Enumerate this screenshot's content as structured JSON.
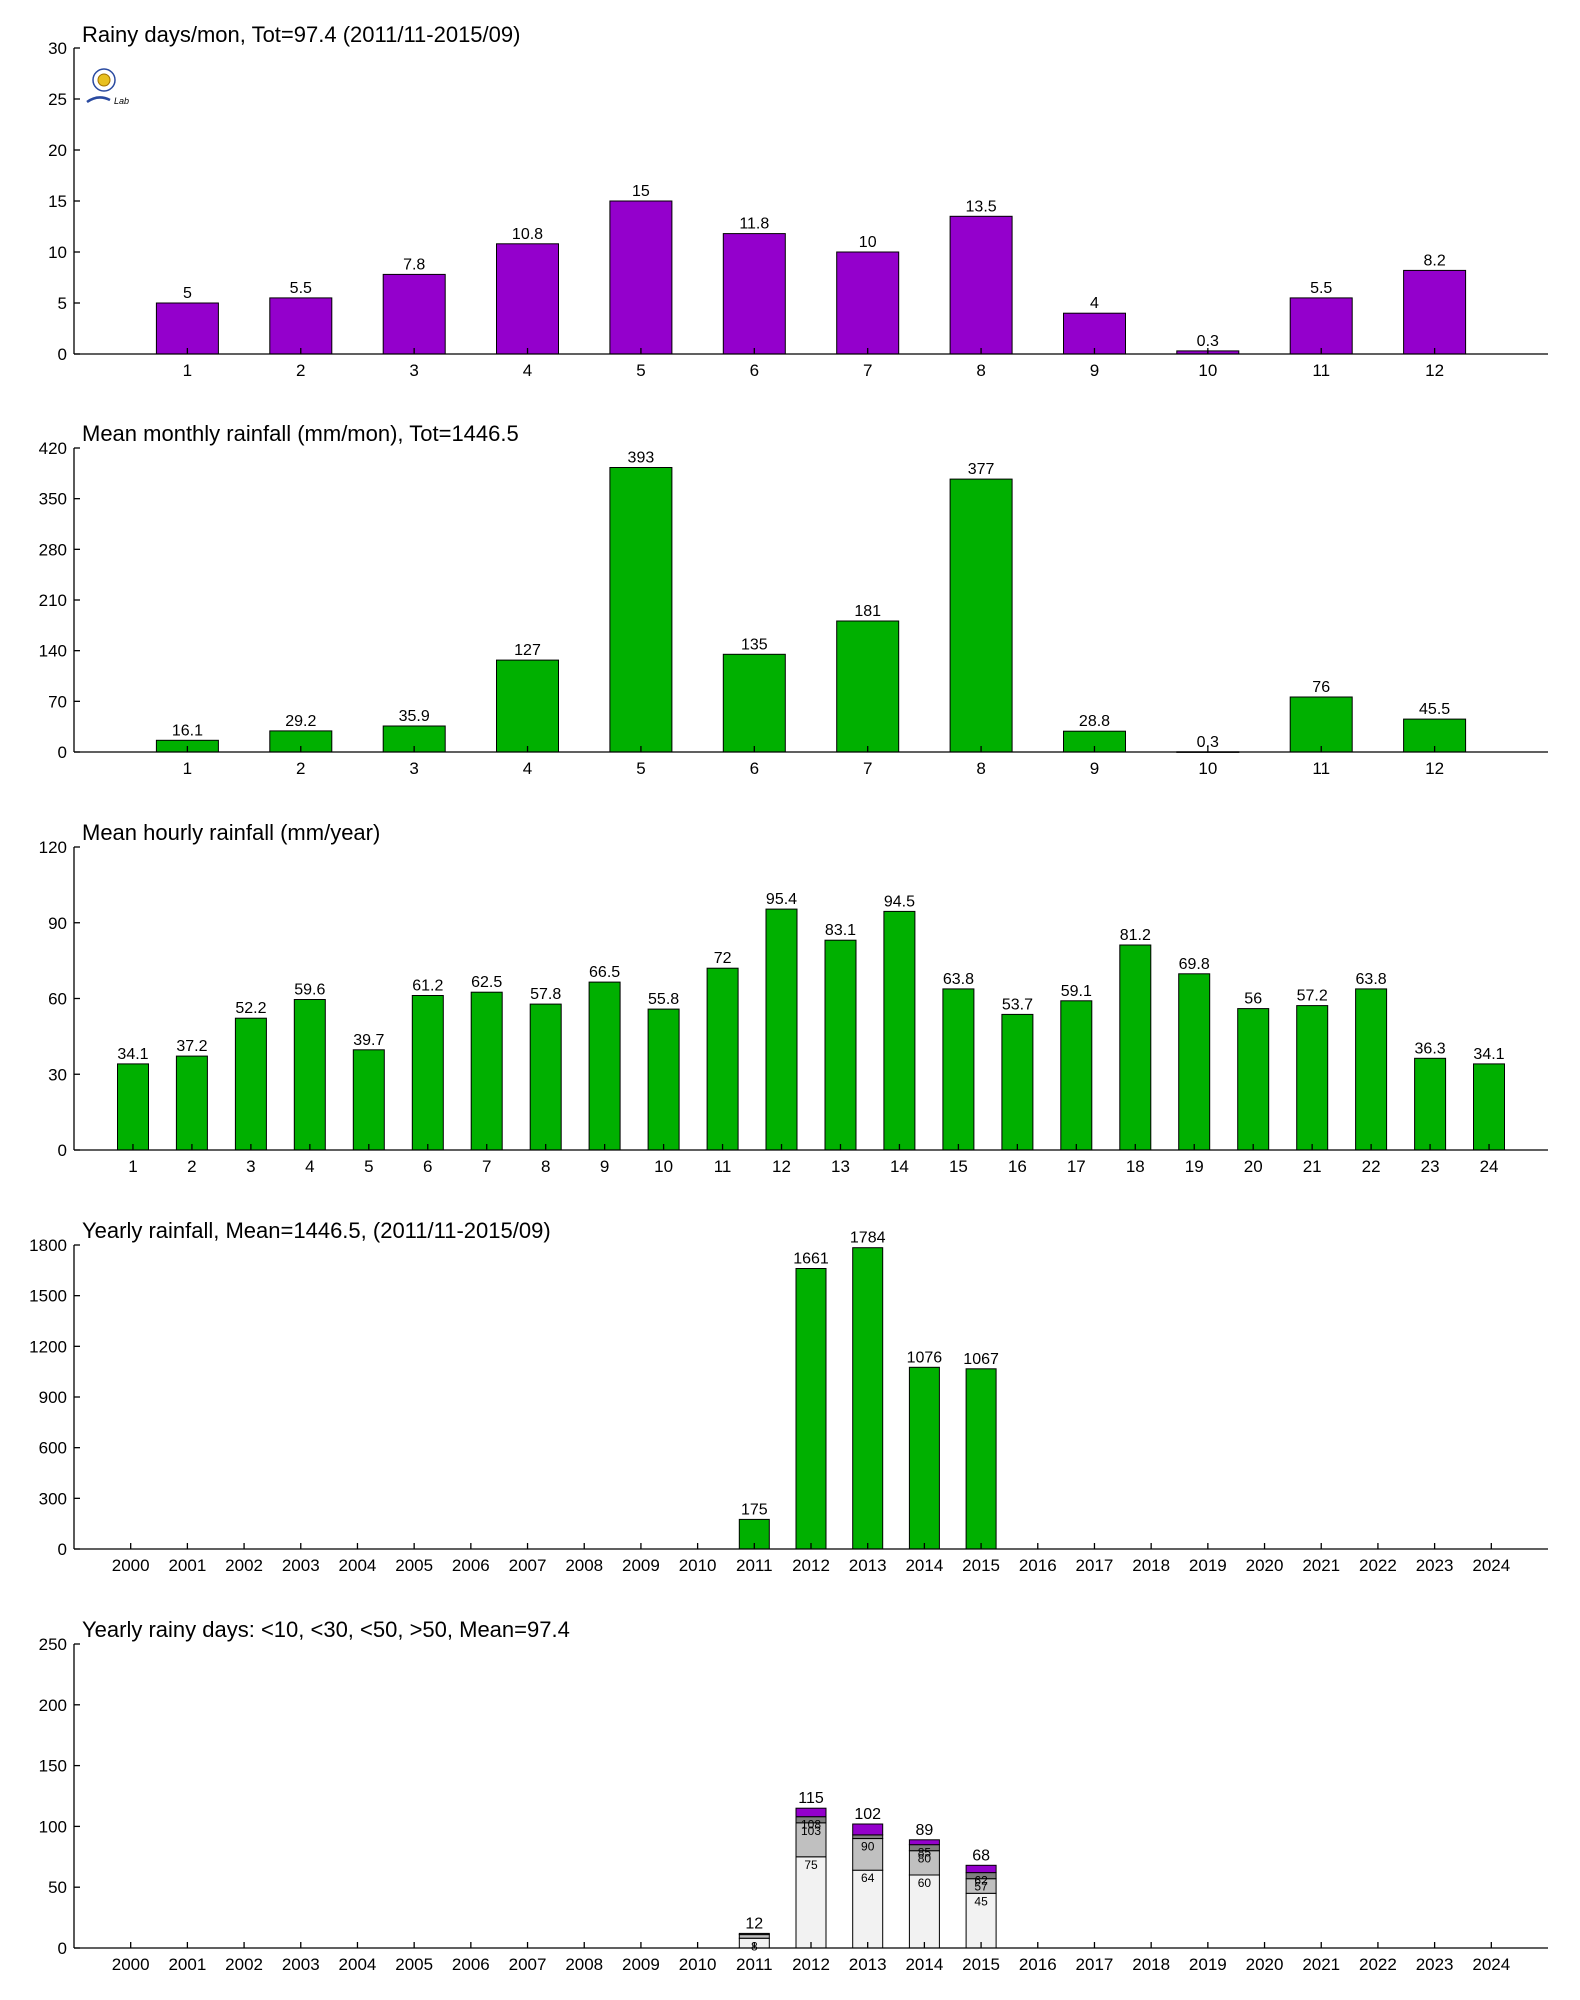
{
  "logo": {
    "label": "Lab"
  },
  "colors": {
    "purple": "#9400cc",
    "green": "#00b000",
    "seg_lt10": "#f2f2f2",
    "seg_lt30": "#c0c0c0",
    "seg_lt50": "#7f7f7f",
    "seg_gt50": "#9400cc"
  },
  "chart_data": [
    {
      "type": "bar",
      "title": "Rainy days/mon, Tot=97.4 (2011/11-2015/09)",
      "color": "purple",
      "categories": [
        "1",
        "2",
        "3",
        "4",
        "5",
        "6",
        "7",
        "8",
        "9",
        "10",
        "11",
        "12"
      ],
      "values": [
        5,
        5.5,
        7.8,
        10.8,
        15,
        11.8,
        10,
        13.5,
        4,
        0.3,
        5.5,
        8.2
      ],
      "value_labels": [
        "5",
        "5.5",
        "7.8",
        "10.8",
        "15",
        "11.8",
        "10",
        "13.5",
        "4",
        "0.3",
        "5.5",
        "8.2"
      ],
      "ylim": [
        0,
        30
      ],
      "yticks": [
        0,
        5,
        10,
        15,
        20,
        25,
        30
      ]
    },
    {
      "type": "bar",
      "title": "Mean monthly rainfall (mm/mon), Tot=1446.5",
      "color": "green",
      "categories": [
        "1",
        "2",
        "3",
        "4",
        "5",
        "6",
        "7",
        "8",
        "9",
        "10",
        "11",
        "12"
      ],
      "values": [
        16.1,
        29.2,
        35.9,
        127,
        393,
        135,
        181,
        377,
        28.8,
        0.3,
        76,
        45.5
      ],
      "value_labels": [
        "16.1",
        "29.2",
        "35.9",
        "127",
        "393",
        "135",
        "181",
        "377",
        "28.8",
        "0.3",
        "76",
        "45.5"
      ],
      "ylim": [
        0,
        420
      ],
      "yticks": [
        0,
        70,
        140,
        210,
        280,
        350,
        420
      ]
    },
    {
      "type": "bar",
      "title": "Mean hourly rainfall (mm/year)",
      "color": "green",
      "categories": [
        "1",
        "2",
        "3",
        "4",
        "5",
        "6",
        "7",
        "8",
        "9",
        "10",
        "11",
        "12",
        "13",
        "14",
        "15",
        "16",
        "17",
        "18",
        "19",
        "20",
        "21",
        "22",
        "23",
        "24"
      ],
      "values": [
        34.1,
        37.2,
        52.2,
        59.6,
        39.7,
        61.2,
        62.5,
        57.8,
        66.5,
        55.8,
        72,
        95.4,
        83.1,
        94.5,
        63.8,
        53.7,
        59.1,
        81.2,
        69.8,
        56,
        57.2,
        63.8,
        36.3,
        34.1
      ],
      "value_labels": [
        "34.1",
        "37.2",
        "52.2",
        "59.6",
        "39.7",
        "61.2",
        "62.5",
        "57.8",
        "66.5",
        "55.8",
        "72",
        "95.4",
        "83.1",
        "94.5",
        "63.8",
        "53.7",
        "59.1",
        "81.2",
        "69.8",
        "56",
        "57.2",
        "63.8",
        "36.3",
        "34.1"
      ],
      "ylim": [
        0,
        120
      ],
      "yticks": [
        0,
        30,
        60,
        90,
        120
      ]
    },
    {
      "type": "bar",
      "title": "Yearly rainfall, Mean=1446.5, (2011/11-2015/09)",
      "color": "green",
      "categories": [
        "2000",
        "2001",
        "2002",
        "2003",
        "2004",
        "2005",
        "2006",
        "2007",
        "2008",
        "2009",
        "2010",
        "2011",
        "2012",
        "2013",
        "2014",
        "2015",
        "2016",
        "2017",
        "2018",
        "2019",
        "2020",
        "2021",
        "2022",
        "2023",
        "2024"
      ],
      "values": [
        null,
        null,
        null,
        null,
        null,
        null,
        null,
        null,
        null,
        null,
        null,
        175,
        1661,
        1784,
        1076,
        1067,
        null,
        null,
        null,
        null,
        null,
        null,
        null,
        null,
        null
      ],
      "value_labels": [
        "",
        "",
        "",
        "",
        "",
        "",
        "",
        "",
        "",
        "",
        "",
        "175",
        "1661",
        "1784",
        "1076",
        "1067",
        "",
        "",
        "",
        "",
        "",
        "",
        "",
        "",
        ""
      ],
      "ylim": [
        0,
        1800
      ],
      "yticks": [
        0,
        300,
        600,
        900,
        1200,
        1500,
        1800
      ]
    },
    {
      "type": "bar",
      "stacked": true,
      "title": "Yearly rainy days: <10, <30, <50, >50, Mean=97.4",
      "categories": [
        "2000",
        "2001",
        "2002",
        "2003",
        "2004",
        "2005",
        "2006",
        "2007",
        "2008",
        "2009",
        "2010",
        "2011",
        "2012",
        "2013",
        "2014",
        "2015",
        "2016",
        "2017",
        "2018",
        "2019",
        "2020",
        "2021",
        "2022",
        "2023",
        "2024"
      ],
      "ylim": [
        0,
        250
      ],
      "yticks": [
        0,
        50,
        100,
        150,
        200,
        250
      ],
      "series_colors": [
        "seg_lt10",
        "seg_lt30",
        "seg_lt50",
        "seg_gt50"
      ],
      "years": [
        {
          "year": "2011",
          "cumulative": [
            8,
            11,
            12,
            12
          ],
          "total_label": "12",
          "segment_labels": [
            "8",
            "",
            "",
            ""
          ]
        },
        {
          "year": "2012",
          "cumulative": [
            75,
            103,
            108,
            115
          ],
          "total_label": "115",
          "segment_labels": [
            "75",
            "103",
            "108",
            ""
          ]
        },
        {
          "year": "2013",
          "cumulative": [
            64,
            90,
            93,
            102
          ],
          "total_label": "102",
          "segment_labels": [
            "64",
            "90",
            "",
            ""
          ]
        },
        {
          "year": "2014",
          "cumulative": [
            60,
            80,
            85,
            89
          ],
          "total_label": "89",
          "segment_labels": [
            "60",
            "80",
            "85",
            ""
          ]
        },
        {
          "year": "2015",
          "cumulative": [
            45,
            57,
            62,
            68
          ],
          "total_label": "68",
          "segment_labels": [
            "45",
            "57",
            "62",
            ""
          ]
        }
      ]
    }
  ]
}
